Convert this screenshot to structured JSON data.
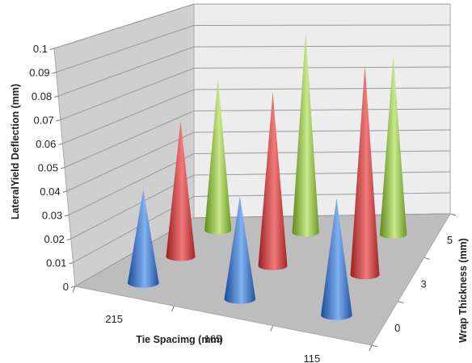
{
  "chart_data": {
    "type": "bar",
    "subtype": "3d-cone",
    "title": "",
    "xlabel": "Tie Spacimg (mm)",
    "ylabel": "Wrap Thickness (mm)",
    "zlabel": "LateralYield Deflection (mm)",
    "categories": [
      "215",
      "165",
      "115"
    ],
    "depth_categories": [
      "0",
      "3",
      "5"
    ],
    "zlim": [
      0,
      0.1
    ],
    "z_ticks": [
      "0",
      "0.01",
      "0.02",
      "0.03",
      "0.04",
      "0.05",
      "0.06",
      "0.07",
      "0.08",
      "0.09",
      "0.1"
    ],
    "grid": true,
    "legend": "none",
    "series": [
      {
        "values": [
          0.04,
          0.044,
          0.05
        ],
        "color": "#4a7fd0"
      },
      {
        "values": [
          0.06,
          0.077,
          0.093
        ],
        "color": "#d43d3d"
      },
      {
        "values": [
          0.07,
          0.092,
          0.082
        ],
        "color": "#95c43f"
      }
    ]
  }
}
